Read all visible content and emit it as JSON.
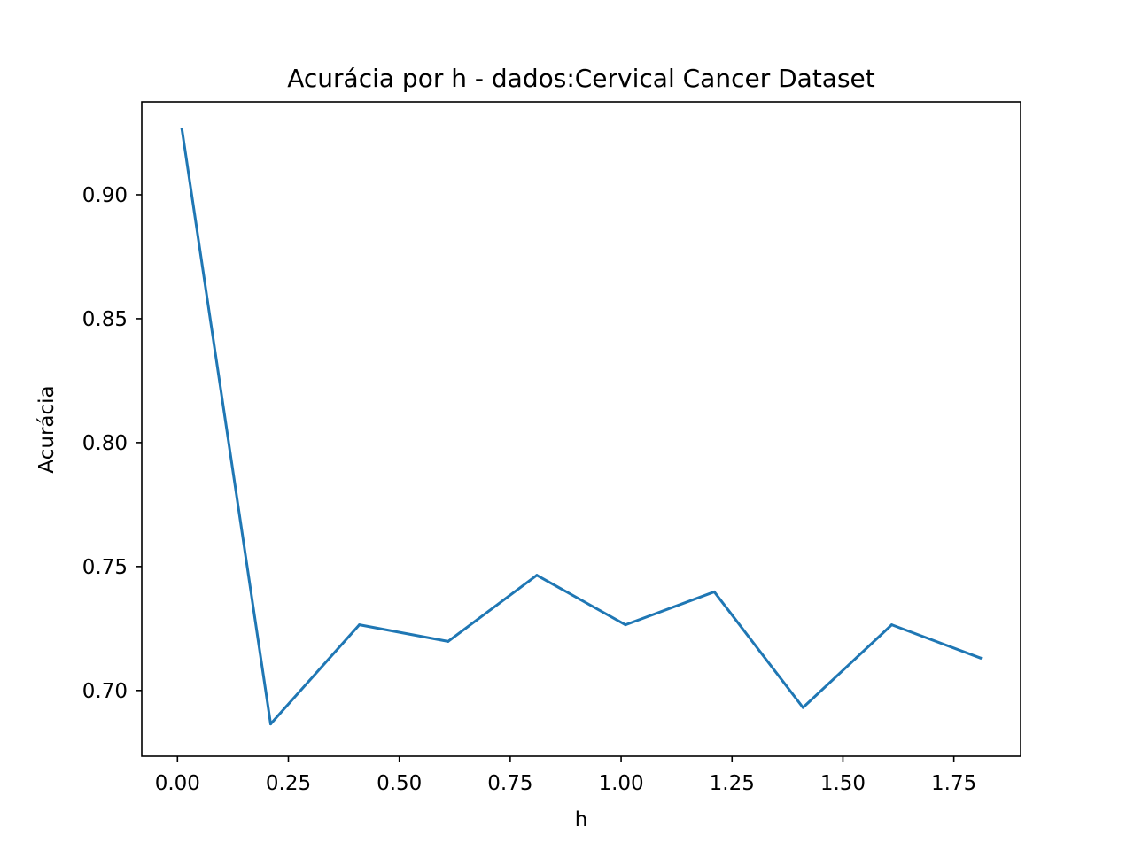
{
  "chart_data": {
    "type": "line",
    "title": "Acurácia por h - dados:Cervical Cancer Dataset",
    "xlabel": "h",
    "ylabel": "Acurácia",
    "xlim": [
      -0.0805,
      1.9005
    ],
    "ylim": [
      0.6735,
      0.9375
    ],
    "xticks": [
      0.0,
      0.25,
      0.5,
      0.75,
      1.0,
      1.25,
      1.5,
      1.75
    ],
    "xtick_labels": [
      "0.00",
      "0.25",
      "0.50",
      "0.75",
      "1.00",
      "1.25",
      "1.50",
      "1.75"
    ],
    "yticks": [
      0.7,
      0.75,
      0.8,
      0.85,
      0.9
    ],
    "ytick_labels": [
      "0.70",
      "0.75",
      "0.80",
      "0.85",
      "0.90"
    ],
    "grid": false,
    "series": [
      {
        "color": "#1f77b4",
        "x": [
          0.01,
          0.21,
          0.41,
          0.61,
          0.81,
          1.01,
          1.21,
          1.41,
          1.61,
          1.81
        ],
        "y": [
          0.9265,
          0.6865,
          0.7265,
          0.7198,
          0.7465,
          0.7265,
          0.7398,
          0.6931,
          0.7265,
          0.7131
        ]
      }
    ]
  }
}
